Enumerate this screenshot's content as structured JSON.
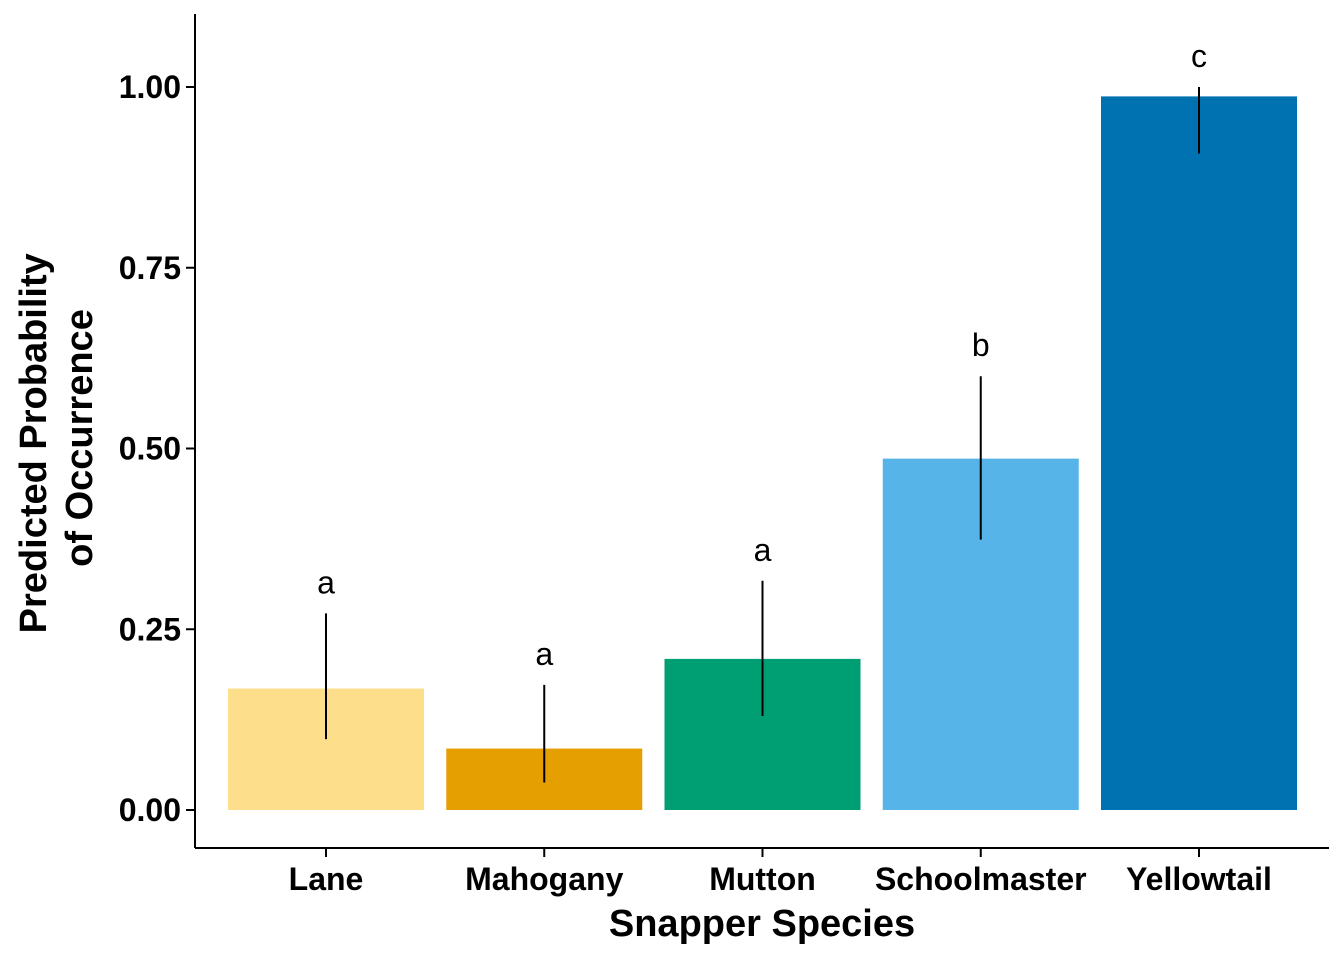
{
  "chart_data": {
    "type": "bar",
    "title": "",
    "xlabel": "Snapper Species",
    "ylabel_lines": [
      "Predicted Probability",
      "of Occurrence"
    ],
    "categories": [
      "Lane",
      "Mahogany",
      "Mutton",
      "Schoolmaster",
      "Yellowtail"
    ],
    "values": [
      0.168,
      0.085,
      0.209,
      0.486,
      0.987
    ],
    "error_low": [
      0.098,
      0.038,
      0.13,
      0.374,
      0.908
    ],
    "error_high": [
      0.272,
      0.173,
      0.317,
      0.6,
      1.0
    ],
    "significance_labels": [
      "a",
      "a",
      "a",
      "b",
      "c"
    ],
    "colors": [
      "#FDDE8A",
      "#E69F00",
      "#009E73",
      "#56B4E9",
      "#0072B2"
    ],
    "ylim": [
      -0.05,
      1.1
    ],
    "yticks": [
      0.0,
      0.25,
      0.5,
      0.75,
      1.0
    ],
    "ytick_labels": [
      "0.00",
      "0.25",
      "0.50",
      "0.75",
      "1.00"
    ],
    "legend": "none",
    "grid": false
  }
}
